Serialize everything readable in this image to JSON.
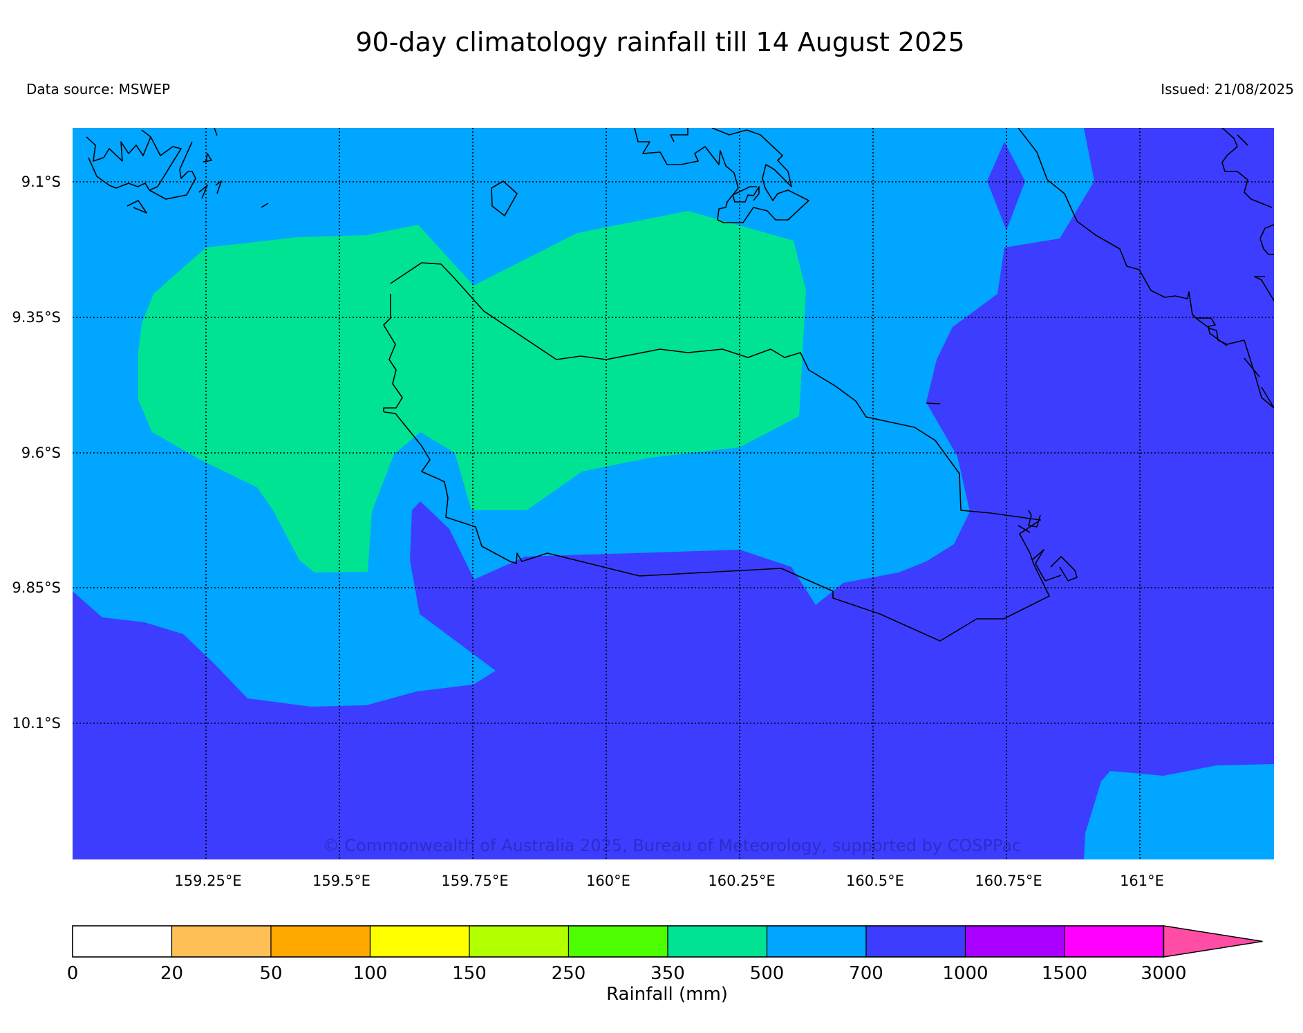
{
  "title": "90-day climatology rainfall till 14 August 2025",
  "data_source": "Data source: MSWEP",
  "issued": "Issued: 21/08/2025",
  "copyright": "© Commonwealth of Australia 2025, Bureau of Meteorology, supported by COSPPac",
  "map": {
    "lat_labels": [
      "9.1°S",
      "9.35°S",
      "9.6°S",
      "9.85°S",
      "10.1°S"
    ],
    "lon_labels": [
      "159.25°E",
      "159.5°E",
      "159.75°E",
      "160°E",
      "160.25°E",
      "160.5°E",
      "160.75°E",
      "161°E"
    ],
    "gridlines": "dotted",
    "fill_colors": {
      "350-500": "#00e393",
      "500-700": "#00a6ff",
      "700-1000": "#3d3dff"
    },
    "coastline_color": "#000000"
  },
  "legend": {
    "label": "Rainfall (mm)",
    "ticks": [
      "0",
      "20",
      "50",
      "100",
      "150",
      "250",
      "350",
      "500",
      "700",
      "1000",
      "1500",
      "3000"
    ],
    "colors": [
      "#ffffff",
      "#ffbf57",
      "#ffa800",
      "#ffff00",
      "#b2ff00",
      "#4dff00",
      "#00e393",
      "#00a6ff",
      "#3d3dff",
      "#aa00ff",
      "#ff00ff",
      "#ff4da6"
    ],
    "extend": "max"
  }
}
